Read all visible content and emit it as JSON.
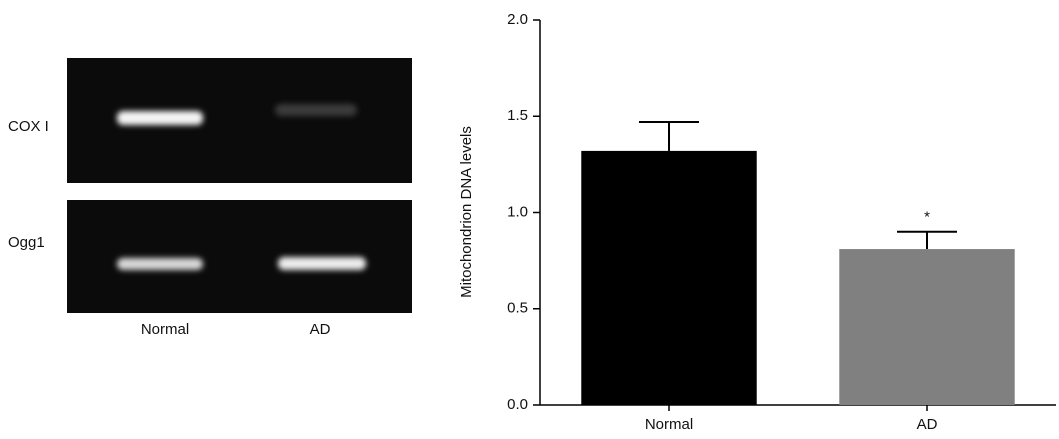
{
  "gel": {
    "rows": [
      "COX I",
      "Ogg1"
    ],
    "lanes": [
      "Normal",
      "AD"
    ]
  },
  "chart_data": {
    "type": "bar",
    "ylabel": "Mitochondrion DNA levels",
    "categories": [
      "Normal",
      "AD"
    ],
    "values": [
      1.32,
      0.81
    ],
    "errors": [
      0.15,
      0.09
    ],
    "colors": [
      "#000000",
      "#808080"
    ],
    "annotation": "*",
    "ylim": [
      0,
      2
    ],
    "yticks": [
      {
        "value": 0,
        "label": "0.0"
      },
      {
        "value": 0.5,
        "label": "0.5"
      },
      {
        "value": 1,
        "label": "1.0"
      },
      {
        "value": 1.5,
        "label": "1.5"
      },
      {
        "value": 2,
        "label": "2.0"
      }
    ]
  }
}
